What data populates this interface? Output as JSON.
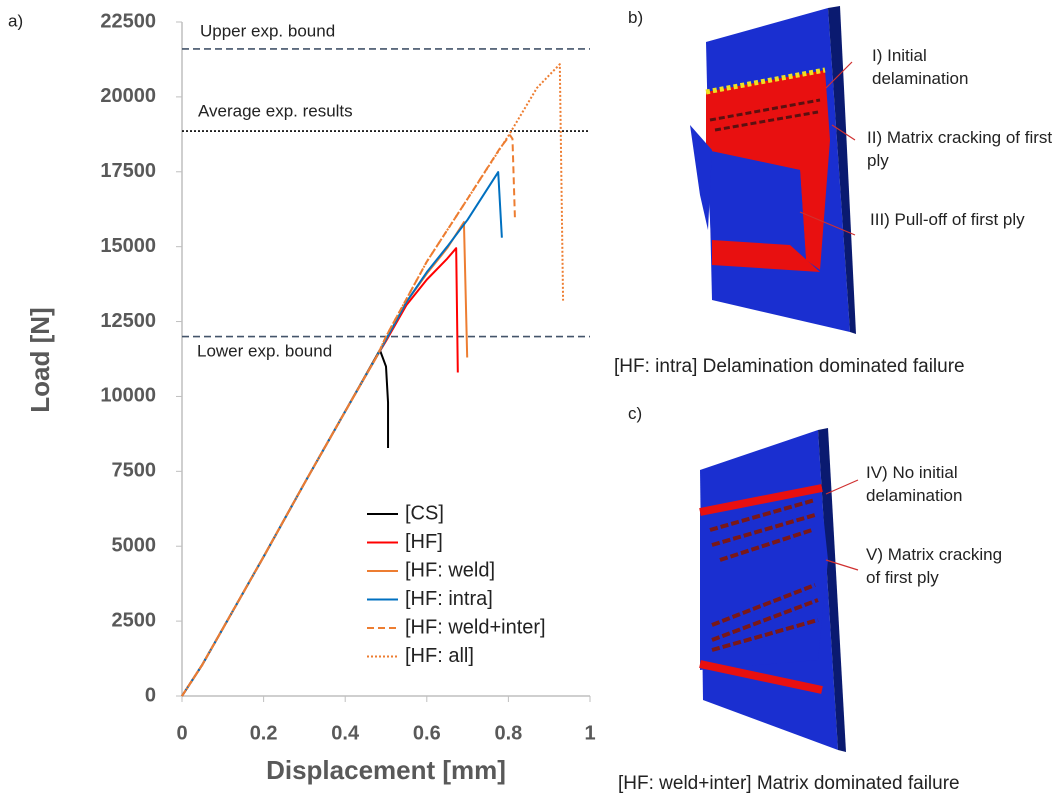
{
  "chart_data": {
    "type": "line",
    "panel_label": "a)",
    "xlabel": "Displacement [mm]",
    "ylabel": "Load [N]",
    "xlim": [
      0,
      1
    ],
    "xticks": [
      0,
      0.2,
      0.4,
      0.6,
      0.8,
      1
    ],
    "ylim": [
      0,
      22500
    ],
    "yticks": [
      0,
      2500,
      5000,
      7500,
      10000,
      12500,
      15000,
      17500,
      20000,
      22500
    ],
    "reference_lines": [
      {
        "label": "Upper exp. bound",
        "value": 21600,
        "style": "dashed",
        "color": "#44546a"
      },
      {
        "label": "Average exp. results",
        "value": 18860,
        "style": "dotted",
        "color": "#000000"
      },
      {
        "label": "Lower exp. bound",
        "value": 12000,
        "style": "dashed",
        "color": "#44546a"
      }
    ],
    "series": [
      {
        "name": "[CS]",
        "color": "#000000",
        "style": "solid",
        "x": [
          0,
          0.05,
          0.1,
          0.2,
          0.3,
          0.4,
          0.485,
          0.5,
          0.505,
          0.505
        ],
        "values": [
          0,
          1050,
          2250,
          4650,
          7100,
          9500,
          11550,
          11000,
          9800,
          8280
        ]
      },
      {
        "name": "[HF]",
        "color": "#ff0000",
        "style": "solid",
        "x": [
          0,
          0.05,
          0.1,
          0.2,
          0.3,
          0.4,
          0.48,
          0.5,
          0.55,
          0.6,
          0.65,
          0.672,
          0.676
        ],
        "values": [
          0,
          1050,
          2250,
          4650,
          7100,
          9500,
          11400,
          11850,
          13050,
          13900,
          14600,
          14950,
          10800
        ]
      },
      {
        "name": "[HF: weld]",
        "color": "#ed7d31",
        "style": "solid",
        "x": [
          0,
          0.05,
          0.1,
          0.2,
          0.3,
          0.4,
          0.48,
          0.5,
          0.55,
          0.6,
          0.65,
          0.691,
          0.699
        ],
        "values": [
          0,
          1050,
          2250,
          4650,
          7100,
          9500,
          11400,
          11900,
          13150,
          14100,
          14950,
          15820,
          11300
        ]
      },
      {
        "name": "[HF: intra]",
        "color": "#0070c0",
        "style": "solid",
        "x": [
          0,
          0.05,
          0.1,
          0.2,
          0.3,
          0.4,
          0.48,
          0.5,
          0.55,
          0.6,
          0.65,
          0.7,
          0.775,
          0.784
        ],
        "values": [
          0,
          1050,
          2250,
          4650,
          7100,
          9500,
          11400,
          11900,
          13150,
          14150,
          15000,
          15900,
          17490,
          15300
        ]
      },
      {
        "name": "[HF: weld+inter]",
        "color": "#ed7d31",
        "style": "dashed",
        "x": [
          0,
          0.05,
          0.1,
          0.2,
          0.3,
          0.4,
          0.48,
          0.5,
          0.6,
          0.7,
          0.78,
          0.804,
          0.81,
          0.816
        ],
        "values": [
          0,
          1050,
          2250,
          4650,
          7100,
          9500,
          11400,
          12000,
          14500,
          16600,
          18300,
          18720,
          18600,
          15950
        ]
      },
      {
        "name": "[HF: all]",
        "color": "#ed7d31",
        "style": "dotted",
        "x": [
          0,
          0.05,
          0.1,
          0.2,
          0.3,
          0.4,
          0.48,
          0.5,
          0.6,
          0.7,
          0.8,
          0.87,
          0.926,
          0.934
        ],
        "values": [
          0,
          1050,
          2250,
          4650,
          7100,
          9500,
          11400,
          12000,
          14500,
          16600,
          18700,
          20300,
          21090,
          13200
        ]
      }
    ]
  },
  "panels": [
    {
      "label": "b)",
      "caption": "[HF: intra] Delamination dominated failure",
      "annotations": [
        "I) Initial delamination",
        "II) Matrix cracking of first ply",
        "III) Pull-off of first ply"
      ]
    },
    {
      "label": "c)",
      "caption": "[HF: weld+inter] Matrix dominated failure",
      "annotations": [
        "IV) No initial delamination",
        "V) Matrix cracking of first ply"
      ]
    }
  ]
}
